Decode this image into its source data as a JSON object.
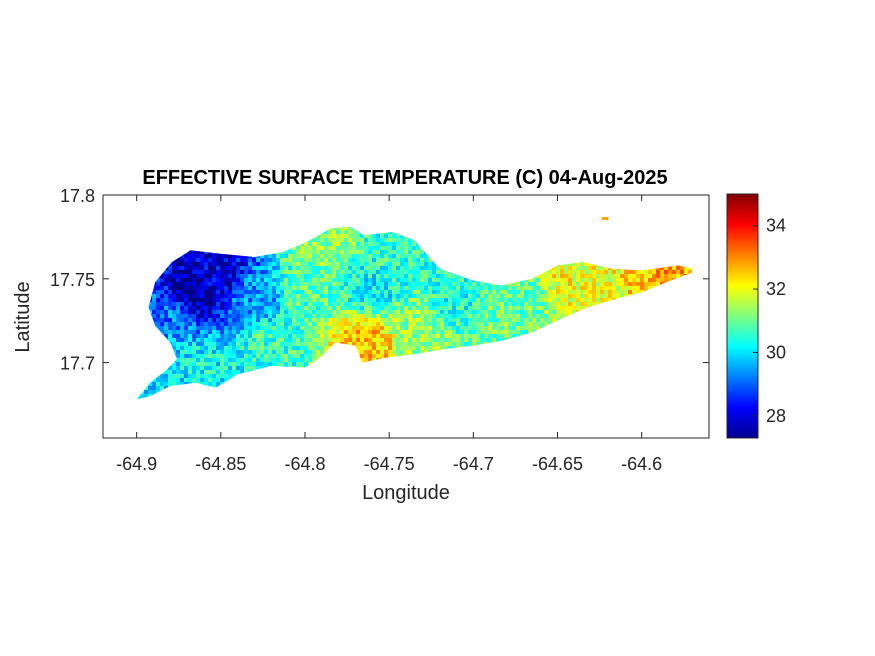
{
  "chart_data": {
    "type": "heatmap",
    "title": "EFFECTIVE SURFACE TEMPERATURE (C) 04-Aug-2025",
    "xlabel": "Longitude",
    "ylabel": "Latitude",
    "xlim": [
      -64.92,
      -64.56
    ],
    "ylim": [
      17.655,
      17.8
    ],
    "x_ticks": [
      -64.9,
      -64.85,
      -64.8,
      -64.75,
      -64.7,
      -64.65,
      -64.6
    ],
    "x_tick_labels": [
      "-64.9",
      "-64.85",
      "-64.8",
      "-64.75",
      "-64.7",
      "-64.65",
      "-64.6"
    ],
    "y_ticks": [
      17.7,
      17.75,
      17.8
    ],
    "y_tick_labels": [
      "17.7",
      "17.75",
      "17.8"
    ],
    "colorbar": {
      "colormap": "jet",
      "clim": [
        27.3,
        35
      ],
      "ticks": [
        28,
        30,
        32,
        34
      ],
      "tick_labels": [
        "28",
        "30",
        "32",
        "34"
      ]
    },
    "island_outline_lonlat": [
      [
        -64.9,
        17.678
      ],
      [
        -64.892,
        17.688
      ],
      [
        -64.883,
        17.695
      ],
      [
        -64.876,
        17.702
      ],
      [
        -64.88,
        17.712
      ],
      [
        -64.889,
        17.722
      ],
      [
        -64.893,
        17.733
      ],
      [
        -64.889,
        17.748
      ],
      [
        -64.879,
        17.76
      ],
      [
        -64.868,
        17.767
      ],
      [
        -64.85,
        17.765
      ],
      [
        -64.83,
        17.763
      ],
      [
        -64.813,
        17.766
      ],
      [
        -64.799,
        17.772
      ],
      [
        -64.785,
        17.78
      ],
      [
        -64.773,
        17.781
      ],
      [
        -64.765,
        17.776
      ],
      [
        -64.748,
        17.778
      ],
      [
        -64.735,
        17.773
      ],
      [
        -64.72,
        17.756
      ],
      [
        -64.7,
        17.749
      ],
      [
        -64.683,
        17.746
      ],
      [
        -64.665,
        17.75
      ],
      [
        -64.65,
        17.758
      ],
      [
        -64.635,
        17.76
      ],
      [
        -64.618,
        17.756
      ],
      [
        -64.6,
        17.755
      ],
      [
        -64.578,
        17.758
      ],
      [
        -64.566,
        17.755
      ],
      [
        -64.58,
        17.75
      ],
      [
        -64.6,
        17.742
      ],
      [
        -64.615,
        17.738
      ],
      [
        -64.632,
        17.733
      ],
      [
        -64.648,
        17.726
      ],
      [
        -64.665,
        17.718
      ],
      [
        -64.683,
        17.713
      ],
      [
        -64.7,
        17.71
      ],
      [
        -64.718,
        17.708
      ],
      [
        -64.735,
        17.705
      ],
      [
        -64.752,
        17.703
      ],
      [
        -64.766,
        17.7
      ],
      [
        -64.77,
        17.71
      ],
      [
        -64.782,
        17.712
      ],
      [
        -64.791,
        17.703
      ],
      [
        -64.8,
        17.697
      ],
      [
        -64.82,
        17.698
      ],
      [
        -64.84,
        17.693
      ],
      [
        -64.853,
        17.685
      ],
      [
        -64.865,
        17.688
      ],
      [
        -64.88,
        17.686
      ],
      [
        -64.892,
        17.68
      ]
    ],
    "temperature_field": {
      "description_units": "C",
      "control_points": [
        {
          "lon": -64.865,
          "lat": 17.742,
          "value": 27.6
        },
        {
          "lon": -64.85,
          "lat": 17.752,
          "value": 28.0
        },
        {
          "lon": -64.88,
          "lat": 17.725,
          "value": 29.2
        },
        {
          "lon": -64.885,
          "lat": 17.705,
          "value": 30.0
        },
        {
          "lon": -64.86,
          "lat": 17.698,
          "value": 30.2
        },
        {
          "lon": -64.83,
          "lat": 17.74,
          "value": 29.4
        },
        {
          "lon": -64.82,
          "lat": 17.71,
          "value": 30.6
        },
        {
          "lon": -64.8,
          "lat": 17.745,
          "value": 30.8
        },
        {
          "lon": -64.79,
          "lat": 17.77,
          "value": 31.3
        },
        {
          "lon": -64.765,
          "lat": 17.712,
          "value": 32.6
        },
        {
          "lon": -64.76,
          "lat": 17.745,
          "value": 30.2
        },
        {
          "lon": -64.745,
          "lat": 17.765,
          "value": 30.5
        },
        {
          "lon": -64.73,
          "lat": 17.72,
          "value": 31.3
        },
        {
          "lon": -64.71,
          "lat": 17.735,
          "value": 30.4
        },
        {
          "lon": -64.69,
          "lat": 17.725,
          "value": 31.0
        },
        {
          "lon": -64.67,
          "lat": 17.74,
          "value": 30.9
        },
        {
          "lon": -64.645,
          "lat": 17.748,
          "value": 32.0
        },
        {
          "lon": -64.62,
          "lat": 17.74,
          "value": 31.9
        },
        {
          "lon": -64.6,
          "lat": 17.75,
          "value": 32.6
        },
        {
          "lon": -64.58,
          "lat": 17.754,
          "value": 32.8
        }
      ]
    },
    "islet_lonlat": [
      -64.622,
      17.786
    ],
    "islet_value": 32.8
  }
}
